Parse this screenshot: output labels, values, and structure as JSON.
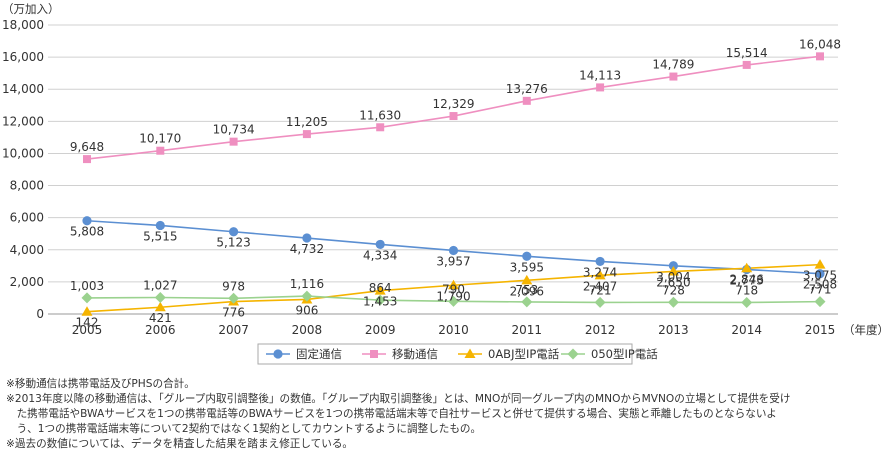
{
  "chart_data": {
    "type": "line",
    "ylabel": "（万加入）",
    "xlabel": "（年度）",
    "ylim": [
      0,
      18000
    ],
    "yticks": [
      0,
      2000,
      4000,
      6000,
      8000,
      10000,
      12000,
      14000,
      16000,
      18000
    ],
    "ytick_labels": [
      "0",
      "2,000",
      "4,000",
      "6,000",
      "8,000",
      "10,000",
      "12,000",
      "14,000",
      "16,000",
      "18,000"
    ],
    "categories": [
      "2005",
      "2006",
      "2007",
      "2008",
      "2009",
      "2010",
      "2011",
      "2012",
      "2013",
      "2014",
      "2015"
    ],
    "grid": true,
    "legend_position": "bottom",
    "series": [
      {
        "name": "固定通信",
        "color": "#5b8fd2",
        "marker": "circle",
        "label_pos": "below",
        "values": [
          5808,
          5515,
          5123,
          4732,
          4334,
          3957,
          3595,
          3274,
          3004,
          2773,
          2508
        ],
        "labels": [
          "5,808",
          "5,515",
          "5,123",
          "4,732",
          "4,334",
          "3,957",
          "3,595",
          "3,274",
          "3,004",
          "2,773",
          "2,508"
        ]
      },
      {
        "name": "移動通信",
        "color": "#ef8fc0",
        "marker": "square",
        "label_pos": "above",
        "values": [
          9648,
          10170,
          10734,
          11205,
          11630,
          12329,
          13276,
          14113,
          14789,
          15514,
          16048
        ],
        "labels": [
          "9,648",
          "10,170",
          "10,734",
          "11,205",
          "11,630",
          "12,329",
          "13,276",
          "14,113",
          "14,789",
          "15,514",
          "16,048"
        ]
      },
      {
        "name": "0ABJ型IP電話",
        "color": "#f5b400",
        "marker": "triangle",
        "label_pos": "below",
        "values": [
          142,
          421,
          776,
          906,
          1453,
          1790,
          2096,
          2407,
          2650,
          2846,
          3075
        ],
        "labels": [
          "142",
          "421",
          "776",
          "906",
          "1,453",
          "1,790",
          "2,096",
          "2,407",
          "2,650",
          "2,846",
          "3,075"
        ]
      },
      {
        "name": "050型IP電話",
        "color": "#9bd28f",
        "marker": "diamond",
        "label_pos": "above",
        "values": [
          1003,
          1027,
          978,
          1116,
          864,
          790,
          753,
          721,
          728,
          718,
          771
        ],
        "labels": [
          "1,003",
          "1,027",
          "978",
          "1,116",
          "864",
          "790",
          "753",
          "721",
          "728",
          "718",
          "771"
        ]
      }
    ]
  },
  "notes": [
    "※移動通信は携帯電話及びPHSの合計。",
    "※2013年度以降の移動通信は、「グループ内取引調整後」の数値。「グループ内取引調整後」とは、MNOが同一グループ内のMNOからMVNOの立場として提供を受け",
    "　た携帯電話やBWAサービスを1つの携帯電話等のBWAサービスを1つの携帯電話端末等で自社サービスと併せて提供する場合、実態と乖離したものとならないよ",
    "　う、1つの携帯電話端末等について2契約ではなく1契約としてカウントするように調整したもの。",
    "※過去の数値については、データを精査した結果を踏まえ修正している。"
  ]
}
